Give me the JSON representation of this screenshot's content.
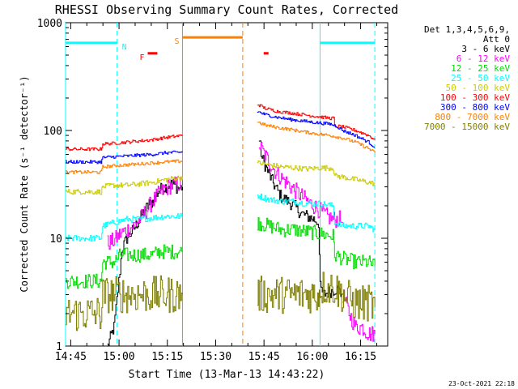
{
  "chart_data": {
    "type": "line",
    "title": "RHESSI Observing Summary Count Rates, Corrected",
    "xlabel": "Start Time (13-Mar-13 14:43:22)",
    "ylabel": "Corrected Count Rate (s⁻¹ detector⁻¹)",
    "x_unit": "minutes from 14:43:22",
    "xlim": [
      0,
      100
    ],
    "ylim": [
      1,
      1000
    ],
    "yscale": "log",
    "x_ticks": [
      {
        "x": 1.6,
        "label": "14:45"
      },
      {
        "x": 16.6,
        "label": "15:00"
      },
      {
        "x": 31.6,
        "label": "15:15"
      },
      {
        "x": 46.6,
        "label": "15:30"
      },
      {
        "x": 61.6,
        "label": "15:45"
      },
      {
        "x": 76.6,
        "label": "16:00"
      },
      {
        "x": 91.6,
        "label": "16:15"
      }
    ],
    "y_ticks": [
      {
        "y": 1,
        "label": "1"
      },
      {
        "y": 10,
        "label": "10"
      },
      {
        "y": 100,
        "label": "100"
      },
      {
        "y": 1000,
        "label": "1000"
      }
    ],
    "legend": {
      "placement": "right",
      "header": [
        "Det 1,3,4,5,6,9,",
        "Att 0"
      ],
      "entries": [
        {
          "label": "3 - 6 keV",
          "color": "#000000"
        },
        {
          "label": "6 - 12 keV",
          "color": "#ff00ff"
        },
        {
          "label": "12 - 25 keV",
          "color": "#00dd00"
        },
        {
          "label": "25 - 50 keV",
          "color": "#00ffff"
        },
        {
          "label": "50 - 100 keV",
          "color": "#cccc00"
        },
        {
          "label": "100 - 300 keV",
          "color": "#ff0000"
        },
        {
          "label": "300 - 800 keV",
          "color": "#0000ff"
        },
        {
          "label": "800 - 7000 keV",
          "color": "#ff8000"
        },
        {
          "label": "7000 - 15000 keV",
          "color": "#808000"
        }
      ]
    },
    "series": [
      {
        "name": "3 - 6 keV",
        "color": "#000000",
        "segments": [
          [
            [
              13,
              1
            ],
            [
              15,
              1.5
            ],
            [
              16.5,
              4
            ],
            [
              17.5,
              8
            ],
            [
              19,
              10
            ],
            [
              21,
              12
            ],
            [
              23,
              15
            ],
            [
              25,
              19
            ],
            [
              27,
              22
            ],
            [
              29,
              28
            ],
            [
              31,
              30
            ],
            [
              33,
              32
            ],
            [
              35,
              29
            ],
            [
              36.3,
              30
            ]
          ],
          [
            [
              60,
              80
            ],
            [
              61,
              55
            ],
            [
              63,
              40
            ],
            [
              65,
              30
            ],
            [
              67,
              24
            ],
            [
              69,
              22
            ],
            [
              71,
              20
            ],
            [
              73,
              17
            ],
            [
              75,
              16
            ],
            [
              77,
              15
            ],
            [
              78.5,
              14
            ],
            [
              79,
              3.5
            ],
            [
              80,
              3
            ],
            [
              82,
              3.2
            ],
            [
              84,
              3.4
            ],
            [
              86,
              3
            ]
          ]
        ]
      },
      {
        "name": "6 - 12 keV",
        "color": "#ff00ff",
        "segments": [
          [
            [
              13,
              9
            ],
            [
              15,
              9.5
            ],
            [
              17,
              11
            ],
            [
              19,
              12
            ],
            [
              21,
              13
            ],
            [
              23,
              15
            ],
            [
              25,
              18
            ],
            [
              27,
              22
            ],
            [
              29,
              26
            ],
            [
              31,
              29
            ],
            [
              33,
              31
            ],
            [
              35,
              32
            ],
            [
              36.3,
              31
            ]
          ],
          [
            [
              60,
              75
            ],
            [
              61,
              65
            ],
            [
              63,
              52
            ],
            [
              65,
              42
            ],
            [
              67,
              36
            ],
            [
              69,
              32
            ],
            [
              71,
              28
            ],
            [
              73,
              25
            ],
            [
              75,
              22
            ],
            [
              77,
              20
            ],
            [
              79,
              18
            ],
            [
              81,
              16
            ],
            [
              83,
              15
            ],
            [
              85,
              15
            ],
            [
              86,
              14
            ]
          ],
          [
            [
              86,
              3
            ],
            [
              88,
              2
            ],
            [
              90,
              1.5
            ],
            [
              92,
              1.5
            ],
            [
              94,
              1.3
            ],
            [
              96,
              1.3
            ]
          ]
        ]
      },
      {
        "name": "12 - 25 keV",
        "color": "#00dd00",
        "segments": [
          [
            [
              0,
              4
            ],
            [
              4,
              4
            ],
            [
              8,
              4
            ],
            [
              11,
              4
            ],
            [
              11.5,
              6
            ],
            [
              15,
              6
            ],
            [
              17,
              7
            ],
            [
              19,
              7
            ],
            [
              23,
              7
            ],
            [
              27,
              7
            ],
            [
              29,
              7.5
            ],
            [
              33,
              7.5
            ],
            [
              36.3,
              7.5
            ]
          ],
          [
            [
              59.5,
              14
            ],
            [
              63,
              13
            ],
            [
              67,
              12
            ],
            [
              71,
              12
            ],
            [
              75,
              11.5
            ],
            [
              79,
              11
            ],
            [
              83,
              10.5
            ],
            [
              83.5,
              7
            ],
            [
              86,
              6.5
            ],
            [
              90,
              6
            ],
            [
              94,
              6
            ],
            [
              96,
              5.5
            ]
          ]
        ]
      },
      {
        "name": "25 - 50 keV",
        "color": "#00ffff",
        "segments": [
          [
            [
              0,
              10
            ],
            [
              4,
              10
            ],
            [
              8,
              10
            ],
            [
              11,
              10
            ],
            [
              11.5,
              13
            ],
            [
              15,
              14
            ],
            [
              19,
              15
            ],
            [
              23,
              15
            ],
            [
              27,
              15.5
            ],
            [
              31,
              16
            ],
            [
              36.3,
              16
            ]
          ],
          [
            [
              59.5,
              25
            ],
            [
              63,
              23
            ],
            [
              67,
              22
            ],
            [
              71,
              22
            ],
            [
              75,
              21
            ],
            [
              79,
              21
            ],
            [
              83,
              20
            ],
            [
              83.5,
              14
            ],
            [
              86,
              13
            ],
            [
              90,
              13
            ],
            [
              94,
              13
            ],
            [
              96,
              12
            ]
          ]
        ]
      },
      {
        "name": "50 - 100 keV",
        "color": "#cccc00",
        "segments": [
          [
            [
              0,
              27
            ],
            [
              4,
              27
            ],
            [
              8,
              27
            ],
            [
              11,
              27
            ],
            [
              11.5,
              30
            ],
            [
              15,
              31
            ],
            [
              19,
              31
            ],
            [
              23,
              32
            ],
            [
              27,
              33
            ],
            [
              31,
              35
            ],
            [
              36.3,
              37
            ]
          ],
          [
            [
              59.5,
              50
            ],
            [
              63,
              48
            ],
            [
              67,
              46
            ],
            [
              71,
              45
            ],
            [
              75,
              44
            ],
            [
              79,
              45
            ],
            [
              83,
              45
            ],
            [
              83.5,
              38
            ],
            [
              86,
              37
            ],
            [
              90,
              35
            ],
            [
              94,
              33
            ],
            [
              96,
              32
            ]
          ]
        ]
      },
      {
        "name": "100 - 300 keV",
        "color": "#ff0000",
        "segments": [
          [
            [
              0,
              67
            ],
            [
              4,
              67
            ],
            [
              8,
              67
            ],
            [
              11,
              67
            ],
            [
              11.5,
              75
            ],
            [
              15,
              76
            ],
            [
              19,
              78
            ],
            [
              23,
              80
            ],
            [
              27,
              82
            ],
            [
              31,
              86
            ],
            [
              36.3,
              90
            ]
          ],
          [
            [
              59.5,
              175
            ],
            [
              62,
              160
            ],
            [
              66,
              150
            ],
            [
              70,
              145
            ],
            [
              74,
              140
            ],
            [
              78,
              135
            ],
            [
              82,
              130
            ],
            [
              83.5,
              130
            ],
            [
              83.5,
              110
            ],
            [
              86,
              108
            ],
            [
              90,
              100
            ],
            [
              94,
              90
            ],
            [
              96,
              82
            ]
          ]
        ]
      },
      {
        "name": "300 - 800 keV",
        "color": "#0000ff",
        "segments": [
          [
            [
              0,
              51
            ],
            [
              4,
              51
            ],
            [
              8,
              51
            ],
            [
              11,
              51
            ],
            [
              11.5,
              56
            ],
            [
              15,
              57
            ],
            [
              19,
              58
            ],
            [
              23,
              59
            ],
            [
              27,
              60
            ],
            [
              31,
              62
            ],
            [
              36.3,
              63
            ]
          ],
          [
            [
              59.5,
              150
            ],
            [
              62,
              140
            ],
            [
              66,
              132
            ],
            [
              70,
              126
            ],
            [
              74,
              122
            ],
            [
              78,
              118
            ],
            [
              82,
              115
            ],
            [
              84,
              110
            ],
            [
              86,
              100
            ],
            [
              90,
              90
            ],
            [
              94,
              78
            ],
            [
              96,
              70
            ]
          ]
        ]
      },
      {
        "name": "800 - 7000 keV",
        "color": "#ff8000",
        "segments": [
          [
            [
              0,
              41
            ],
            [
              4,
              41
            ],
            [
              8,
              41
            ],
            [
              11,
              41
            ],
            [
              11.5,
              46
            ],
            [
              15,
              47
            ],
            [
              19,
              48
            ],
            [
              23,
              49
            ],
            [
              27,
              50
            ],
            [
              31,
              51
            ],
            [
              36.3,
              52
            ]
          ],
          [
            [
              59.5,
              120
            ],
            [
              62,
              112
            ],
            [
              66,
              106
            ],
            [
              70,
              102
            ],
            [
              74,
              97
            ],
            [
              78,
              93
            ],
            [
              82,
              90
            ],
            [
              86,
              85
            ],
            [
              90,
              78
            ],
            [
              94,
              68
            ],
            [
              96,
              62
            ]
          ]
        ]
      },
      {
        "name": "7000 - 15000 keV",
        "color": "#808000",
        "segments": [
          [
            [
              0,
              2
            ],
            [
              4,
              2
            ],
            [
              8,
              2
            ],
            [
              11,
              2
            ],
            [
              11.5,
              3
            ],
            [
              15,
              3
            ],
            [
              19,
              3
            ],
            [
              23,
              3
            ],
            [
              27,
              3
            ],
            [
              31,
              3
            ],
            [
              36.3,
              3
            ]
          ],
          [
            [
              59.5,
              3
            ],
            [
              63,
              3
            ],
            [
              67,
              3
            ],
            [
              71,
              3
            ],
            [
              75,
              3
            ],
            [
              78.5,
              3
            ],
            [
              79,
              3.5
            ],
            [
              83,
              3.5
            ],
            [
              86,
              3
            ],
            [
              90,
              2.5
            ],
            [
              94,
              2.5
            ],
            [
              96,
              2.3
            ]
          ]
        ]
      }
    ],
    "intervals": [
      {
        "label": "",
        "color": "#00ffff",
        "x": [
          0,
          16
        ],
        "y": 650
      },
      {
        "label": "N",
        "color": "#00ffff",
        "x": [
          16,
          16
        ],
        "y": 650
      },
      {
        "label": "",
        "color": "#00ffff",
        "x": [
          79,
          96
        ],
        "y": 650
      },
      {
        "label": "F",
        "color": "#ff0000",
        "x": [
          25.5,
          28.5
        ],
        "y": 520
      },
      {
        "label": "",
        "color": "#ff0000",
        "x": [
          61.5,
          63
        ],
        "y": 520
      },
      {
        "label": "S",
        "color": "#ff8000",
        "x": [
          36.3,
          55
        ],
        "y": 730
      }
    ],
    "vlines": [
      {
        "x": 0,
        "color": "#00ffff",
        "style": "solid"
      },
      {
        "x": 16,
        "color": "#00ffff",
        "style": "dashed"
      },
      {
        "x": 79,
        "color": "#00ffff",
        "style": "solid"
      },
      {
        "x": 96,
        "color": "#00ffff",
        "style": "dashed"
      },
      {
        "x": 36.3,
        "color": "#ff8000",
        "style": "solid"
      },
      {
        "x": 55,
        "color": "#ff8000",
        "style": "dashed"
      }
    ],
    "annotations": [
      {
        "text": "23-Oct-2021 22:18",
        "placement": "bottom-right"
      }
    ]
  }
}
